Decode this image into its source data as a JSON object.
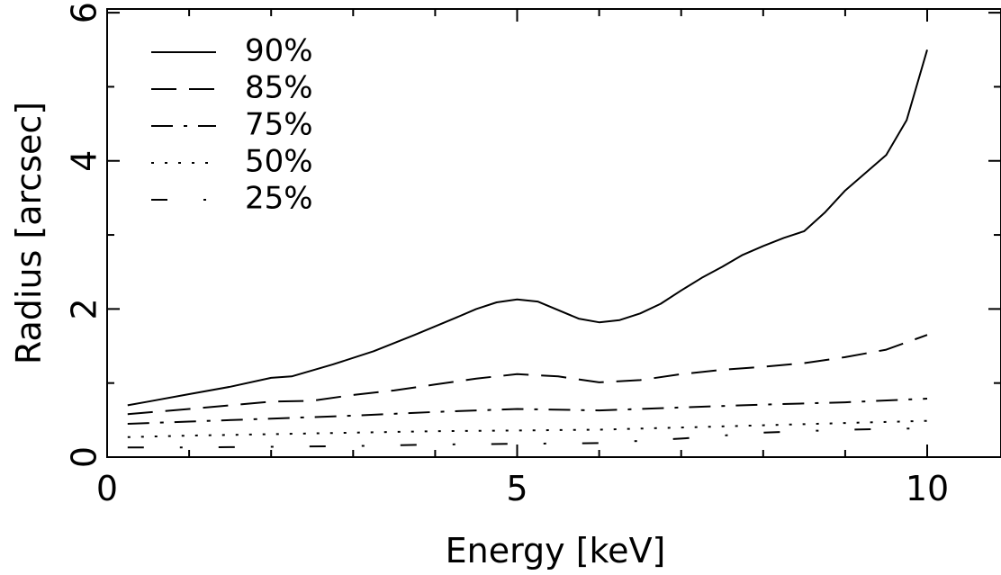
{
  "chart_data": {
    "type": "line",
    "xlabel": "Energy [keV]",
    "ylabel": "Radius [arcsec]",
    "xlim": [
      0,
      10.9
    ],
    "ylim": [
      0,
      6.05
    ],
    "xticks_major": [
      0,
      5,
      10
    ],
    "xticks_minor": [
      1,
      2,
      3,
      4,
      6,
      7,
      8,
      9
    ],
    "yticks_major": [
      0,
      2,
      4,
      6
    ],
    "yticks_minor": [
      1,
      3,
      5
    ],
    "legend_placement": "top-left",
    "grid": false,
    "line_color": "#000000",
    "series": [
      {
        "name": "90%",
        "style": "solid",
        "x": [
          0.25,
          0.5,
          1.0,
          1.5,
          2.0,
          2.25,
          2.75,
          3.25,
          3.75,
          4.25,
          4.5,
          4.75,
          5.0,
          5.25,
          5.75,
          6.0,
          6.25,
          6.5,
          6.75,
          7.0,
          7.25,
          7.5,
          7.75,
          8.0,
          8.25,
          8.5,
          8.75,
          9.0,
          9.5,
          9.75,
          10.0
        ],
        "y": [
          0.7,
          0.75,
          0.85,
          0.95,
          1.07,
          1.09,
          1.25,
          1.43,
          1.65,
          1.88,
          2.0,
          2.09,
          2.13,
          2.1,
          1.87,
          1.82,
          1.85,
          1.94,
          2.07,
          2.25,
          2.42,
          2.57,
          2.73,
          2.85,
          2.96,
          3.05,
          3.3,
          3.6,
          4.08,
          4.55,
          5.5
        ]
      },
      {
        "name": "85%",
        "style": "long-dash",
        "x": [
          0.25,
          1.0,
          2.0,
          2.5,
          3.0,
          3.5,
          4.0,
          4.5,
          5.0,
          5.5,
          6.0,
          6.5,
          7.0,
          7.5,
          8.0,
          8.5,
          9.0,
          9.5,
          10.0
        ],
        "y": [
          0.58,
          0.65,
          0.75,
          0.76,
          0.84,
          0.9,
          0.98,
          1.06,
          1.12,
          1.09,
          1.01,
          1.04,
          1.12,
          1.18,
          1.22,
          1.27,
          1.35,
          1.45,
          1.65
        ]
      },
      {
        "name": "75%",
        "style": "dash-dot",
        "x": [
          0.25,
          1.0,
          2.0,
          3.0,
          4.0,
          5.0,
          6.0,
          7.0,
          8.0,
          9.0,
          10.0
        ],
        "y": [
          0.45,
          0.48,
          0.52,
          0.56,
          0.61,
          0.65,
          0.63,
          0.67,
          0.71,
          0.74,
          0.79
        ]
      },
      {
        "name": "50%",
        "style": "dotted",
        "x": [
          0.25,
          1.0,
          2.0,
          3.0,
          4.0,
          5.0,
          6.0,
          7.0,
          8.0,
          9.0,
          10.0
        ],
        "y": [
          0.27,
          0.29,
          0.31,
          0.33,
          0.35,
          0.36,
          0.37,
          0.4,
          0.43,
          0.46,
          0.49
        ]
      },
      {
        "name": "25%",
        "style": "dash-dot-sparse",
        "x": [
          0.25,
          1.0,
          2.0,
          3.0,
          4.0,
          5.0,
          6.0,
          7.0,
          8.0,
          9.0,
          10.0
        ],
        "y": [
          0.13,
          0.13,
          0.14,
          0.15,
          0.17,
          0.18,
          0.19,
          0.25,
          0.33,
          0.37,
          0.39
        ]
      }
    ]
  }
}
